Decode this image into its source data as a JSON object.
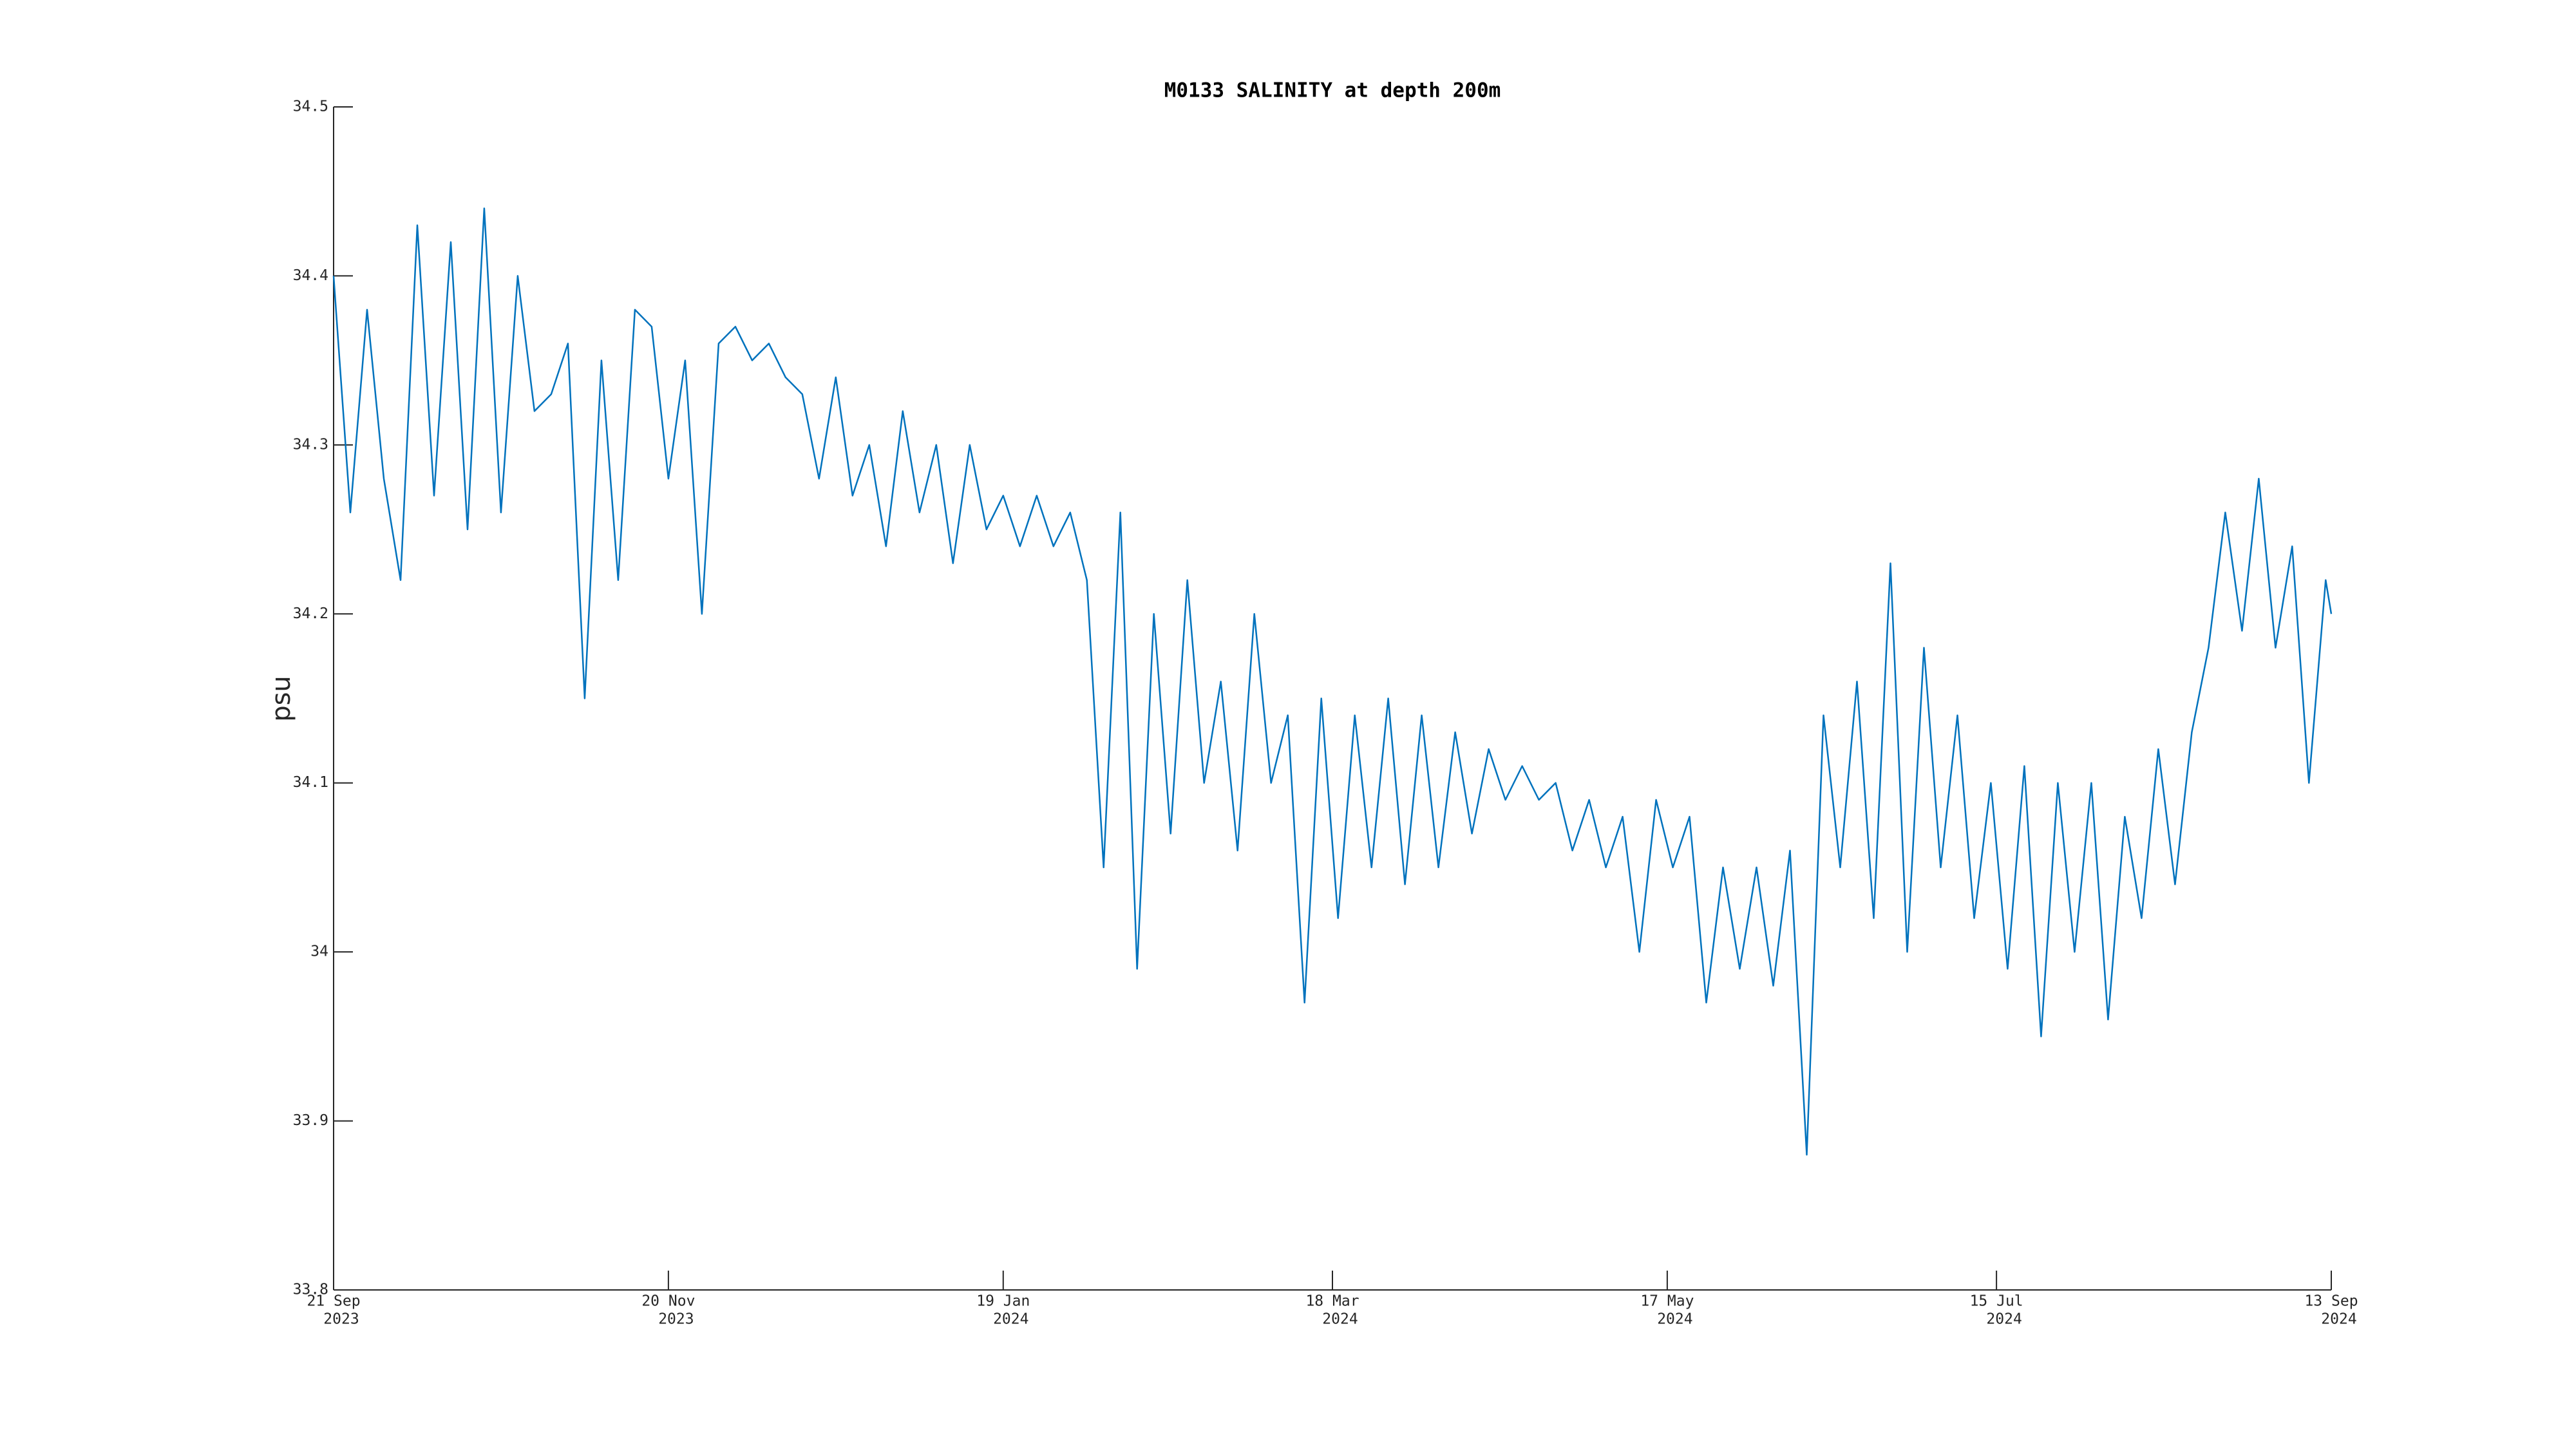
{
  "chart_data": {
    "type": "line",
    "title": "M0133 SALINITY at depth 200m",
    "y_label": "psu",
    "color": "#0072bd",
    "xlim": [
      "2023-09-21",
      "2024-09-13"
    ],
    "xticks": [
      {
        "value": "2023-09-21",
        "label": [
          "21 Sep",
          "2023"
        ]
      },
      {
        "value": "2023-11-20",
        "label": [
          "20 Nov",
          "2023"
        ]
      },
      {
        "value": "2024-01-19",
        "label": [
          "19 Jan",
          "2024"
        ]
      },
      {
        "value": "2024-03-18",
        "label": [
          "18 Mar",
          "2024"
        ]
      },
      {
        "value": "2024-05-17",
        "label": [
          "17 May",
          "2024"
        ]
      },
      {
        "value": "2024-07-15",
        "label": [
          "15 Jul",
          "2024"
        ]
      },
      {
        "value": "2024-09-13",
        "label": [
          "13 Sep",
          "2024"
        ]
      }
    ],
    "ylim": [
      33.8,
      34.5
    ],
    "yticks": [
      33.8,
      33.9,
      34,
      34.1,
      34.2,
      34.3,
      34.4,
      34.5
    ],
    "grid": false,
    "x": [
      "2023-09-21",
      "2023-09-24",
      "2023-09-27",
      "2023-09-30",
      "2023-10-03",
      "2023-10-06",
      "2023-10-09",
      "2023-10-12",
      "2023-10-15",
      "2023-10-18",
      "2023-10-21",
      "2023-10-24",
      "2023-10-27",
      "2023-10-30",
      "2023-11-02",
      "2023-11-05",
      "2023-11-08",
      "2023-11-11",
      "2023-11-14",
      "2023-11-17",
      "2023-11-20",
      "2023-11-23",
      "2023-11-26",
      "2023-11-29",
      "2023-12-02",
      "2023-12-05",
      "2023-12-08",
      "2023-12-11",
      "2023-12-14",
      "2023-12-17",
      "2023-12-20",
      "2023-12-23",
      "2023-12-26",
      "2023-12-29",
      "2024-01-01",
      "2024-01-04",
      "2024-01-07",
      "2024-01-10",
      "2024-01-13",
      "2024-01-16",
      "2024-01-19",
      "2024-01-22",
      "2024-01-25",
      "2024-01-28",
      "2024-01-31",
      "2024-02-03",
      "2024-02-06",
      "2024-02-09",
      "2024-02-12",
      "2024-02-15",
      "2024-02-18",
      "2024-02-21",
      "2024-02-24",
      "2024-02-27",
      "2024-03-01",
      "2024-03-04",
      "2024-03-07",
      "2024-03-10",
      "2024-03-13",
      "2024-03-16",
      "2024-03-19",
      "2024-03-22",
      "2024-03-25",
      "2024-03-28",
      "2024-03-31",
      "2024-04-03",
      "2024-04-06",
      "2024-04-09",
      "2024-04-12",
      "2024-04-15",
      "2024-04-18",
      "2024-04-21",
      "2024-04-24",
      "2024-04-27",
      "2024-04-30",
      "2024-05-03",
      "2024-05-06",
      "2024-05-09",
      "2024-05-12",
      "2024-05-15",
      "2024-05-18",
      "2024-05-21",
      "2024-05-24",
      "2024-05-27",
      "2024-05-30",
      "2024-06-02",
      "2024-06-05",
      "2024-06-08",
      "2024-06-11",
      "2024-06-14",
      "2024-06-17",
      "2024-06-20",
      "2024-06-23",
      "2024-06-26",
      "2024-06-29",
      "2024-07-02",
      "2024-07-05",
      "2024-07-08",
      "2024-07-11",
      "2024-07-14",
      "2024-07-17",
      "2024-07-20",
      "2024-07-23",
      "2024-07-26",
      "2024-07-29",
      "2024-08-01",
      "2024-08-04",
      "2024-08-07",
      "2024-08-10",
      "2024-08-13",
      "2024-08-16",
      "2024-08-19",
      "2024-08-22",
      "2024-08-25",
      "2024-08-28",
      "2024-08-31",
      "2024-09-03",
      "2024-09-06",
      "2024-09-09",
      "2024-09-12",
      "2024-09-13"
    ],
    "values": [
      34.4,
      34.26,
      34.38,
      34.28,
      34.22,
      34.43,
      34.27,
      34.42,
      34.25,
      34.44,
      34.26,
      34.4,
      34.32,
      34.33,
      34.36,
      34.15,
      34.35,
      34.22,
      34.38,
      34.37,
      34.28,
      34.35,
      34.2,
      34.36,
      34.37,
      34.35,
      34.36,
      34.34,
      34.33,
      34.28,
      34.34,
      34.27,
      34.3,
      34.24,
      34.32,
      34.26,
      34.3,
      34.23,
      34.3,
      34.25,
      34.27,
      34.24,
      34.27,
      34.24,
      34.26,
      34.22,
      34.05,
      34.26,
      33.99,
      34.2,
      34.07,
      34.22,
      34.1,
      34.16,
      34.06,
      34.2,
      34.1,
      34.14,
      33.97,
      34.15,
      34.02,
      34.14,
      34.05,
      34.15,
      34.04,
      34.14,
      34.05,
      34.13,
      34.07,
      34.12,
      34.09,
      34.11,
      34.09,
      34.1,
      34.06,
      34.09,
      34.05,
      34.08,
      34.0,
      34.09,
      34.05,
      34.08,
      33.97,
      34.05,
      33.99,
      34.05,
      33.98,
      34.06,
      33.88,
      34.14,
      34.05,
      34.16,
      34.02,
      34.23,
      34.0,
      34.18,
      34.05,
      34.14,
      34.02,
      34.1,
      33.99,
      34.11,
      33.95,
      34.1,
      34.0,
      34.1,
      33.96,
      34.08,
      34.02,
      34.12,
      34.04,
      34.13,
      34.18,
      34.26,
      34.19,
      34.28,
      34.18,
      34.24,
      34.1,
      34.22,
      34.2
    ]
  }
}
